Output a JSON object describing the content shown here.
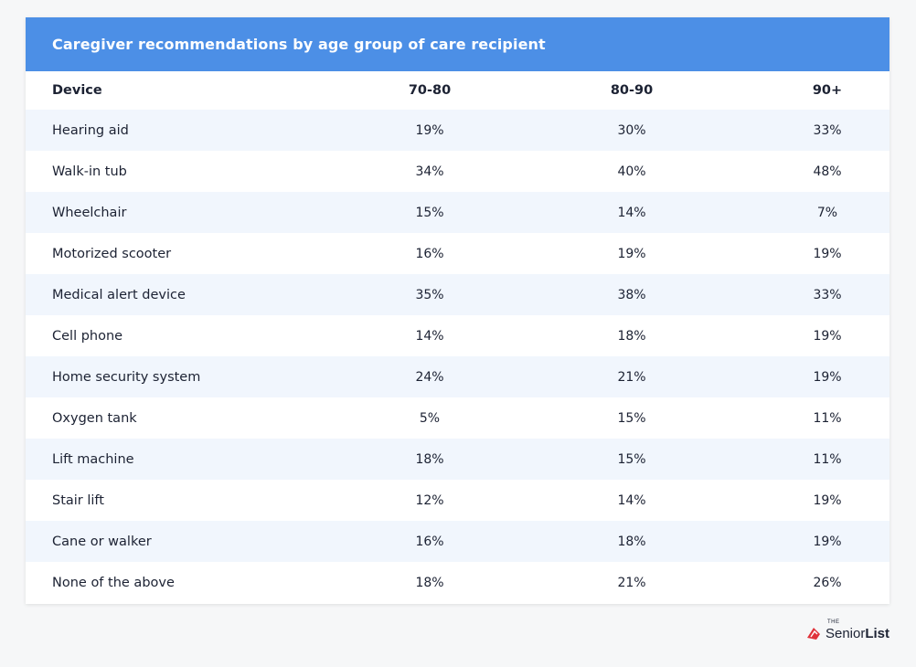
{
  "chart_data": {
    "type": "table",
    "title": "Caregiver recommendations by age group of care recipient",
    "columns": [
      "Device",
      "70-80",
      "80-90",
      "90+"
    ],
    "rows": [
      {
        "device": "Hearing aid",
        "v1": "19%",
        "v2": "30%",
        "v3": "33%"
      },
      {
        "device": "Walk-in tub",
        "v1": "34%",
        "v2": "40%",
        "v3": "48%"
      },
      {
        "device": "Wheelchair",
        "v1": "15%",
        "v2": "14%",
        "v3": "7%"
      },
      {
        "device": "Motorized scooter",
        "v1": "16%",
        "v2": "19%",
        "v3": "19%"
      },
      {
        "device": "Medical alert device",
        "v1": "35%",
        "v2": "38%",
        "v3": "33%"
      },
      {
        "device": "Cell phone",
        "v1": "14%",
        "v2": "18%",
        "v3": "19%"
      },
      {
        "device": "Home security system",
        "v1": "24%",
        "v2": "21%",
        "v3": "19%"
      },
      {
        "device": "Oxygen tank",
        "v1": "5%",
        "v2": "15%",
        "v3": "11%"
      },
      {
        "device": "Lift machine",
        "v1": "18%",
        "v2": "15%",
        "v3": "11%"
      },
      {
        "device": "Stair lift",
        "v1": "12%",
        "v2": "14%",
        "v3": "19%"
      },
      {
        "device": "Cane or walker",
        "v1": "16%",
        "v2": "18%",
        "v3": "19%"
      },
      {
        "device": "None of the above",
        "v1": "18%",
        "v2": "21%",
        "v3": "26%"
      }
    ]
  },
  "logo": {
    "the": "THE",
    "senior": "Senior",
    "list": "List"
  },
  "colors": {
    "header_bg": "#4c8fe6",
    "row_alt_bg": "#f1f6fd",
    "logo_red": "#e0323a"
  }
}
